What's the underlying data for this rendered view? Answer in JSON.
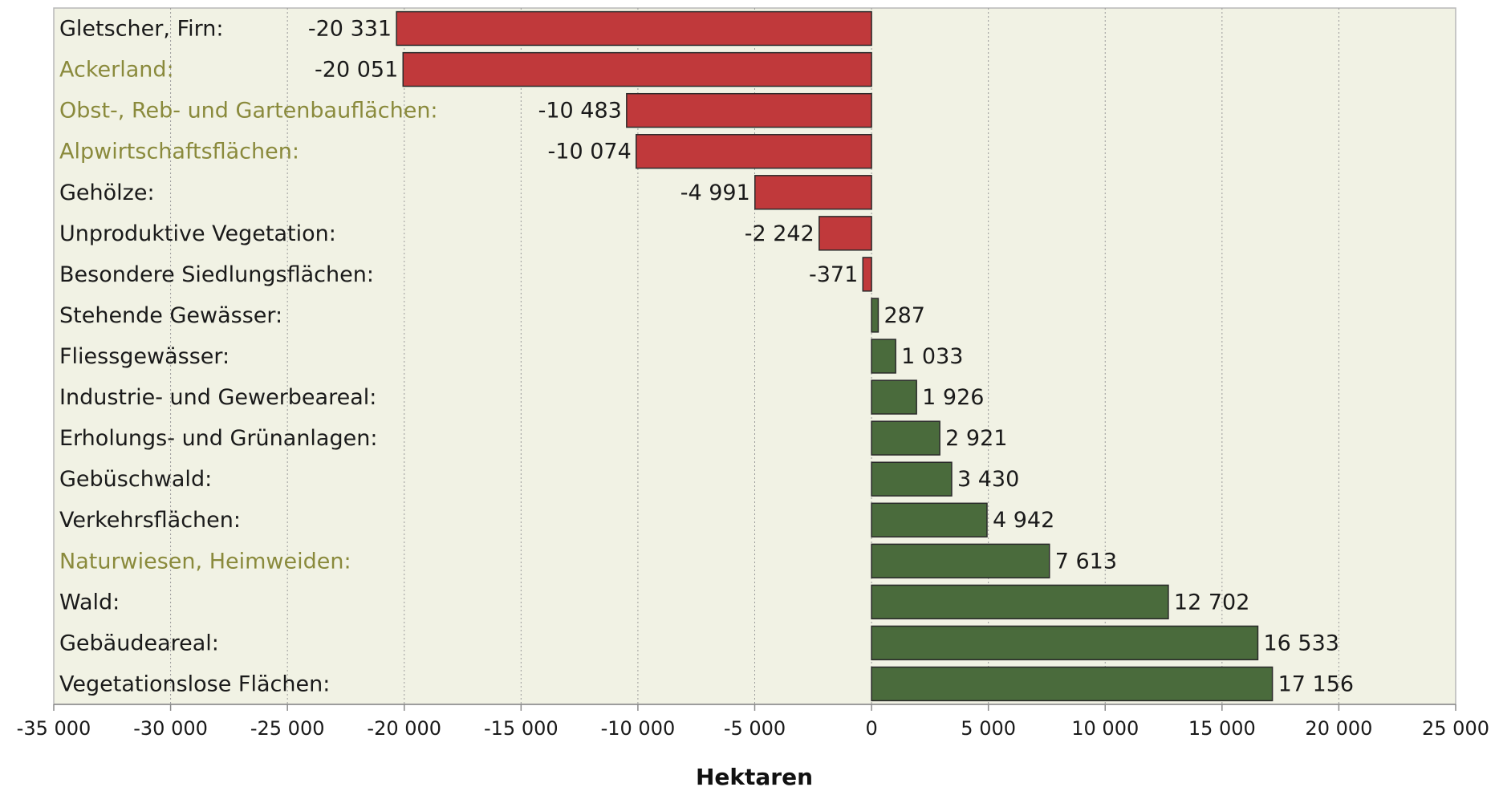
{
  "chart_data": {
    "type": "bar",
    "orientation": "horizontal",
    "xlabel": "Hektaren",
    "xlim": [
      -35000,
      25000
    ],
    "xticks": [
      -35000,
      -30000,
      -25000,
      -20000,
      -15000,
      -10000,
      -5000,
      0,
      5000,
      10000,
      15000,
      20000,
      25000
    ],
    "xtick_labels": [
      "-35 000",
      "-30 000",
      "-25 000",
      "-20 000",
      "-15 000",
      "-10 000",
      "-5 000",
      "0",
      "5 000",
      "10 000",
      "15 000",
      "20 000",
      "25 000"
    ],
    "grid": "vertical dashed",
    "colors": {
      "plot_background": "#f1f2e4",
      "negative": "#c0393b",
      "positive": "#4a6b3c",
      "label_default": "#1a1a1a",
      "label_highlight": "#8a8a3c"
    },
    "categories": [
      "Gletscher, Firn:",
      "Ackerland:",
      "Obst-, Reb- und Gartenbauflächen:",
      "Alpwirtschaftsflächen:",
      "Gehölze:",
      "Unproduktive Vegetation:",
      "Besondere Siedlungsflächen:",
      "Stehende Gewässer:",
      "Fliessgewässer:",
      "Industrie- und Gewerbeareal:",
      "Erholungs- und Grünanlagen:",
      "Gebüschwald:",
      "Verkehrsflächen:",
      "Naturwiesen, Heimweiden:",
      "Wald:",
      "Gebäudeareal:",
      "Vegetationslose Flächen:"
    ],
    "highlighted": [
      false,
      true,
      true,
      true,
      false,
      false,
      false,
      false,
      false,
      false,
      false,
      false,
      false,
      true,
      false,
      false,
      false
    ],
    "values": [
      -20331,
      -20051,
      -10483,
      -10074,
      -4991,
      -2242,
      -371,
      287,
      1033,
      1926,
      2921,
      3430,
      4942,
      7613,
      12702,
      16533,
      17156
    ],
    "value_labels": [
      "-20 331",
      "-20 051",
      "-10 483",
      "-10 074",
      "-4 991",
      "-2 242",
      "-371",
      "287",
      "1 033",
      "1 926",
      "2 921",
      "3 430",
      "4 942",
      "7 613",
      "12 702",
      "16 533",
      "17 156"
    ]
  }
}
